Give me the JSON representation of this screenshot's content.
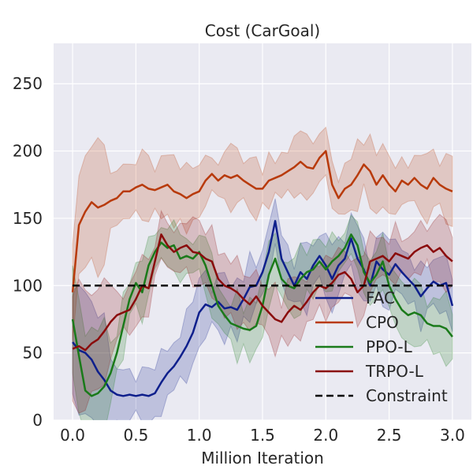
{
  "chart_data": {
    "type": "line",
    "title": "Cost (CarGoal)",
    "xlabel": "Million Iteration",
    "ylabel": "",
    "xlim": [
      -0.15,
      3.15
    ],
    "ylim": [
      0,
      280
    ],
    "xticks": [
      0.0,
      0.5,
      1.0,
      1.5,
      2.0,
      2.5,
      3.0
    ],
    "xtick_labels": [
      "0.0",
      "0.5",
      "1.0",
      "1.5",
      "2.0",
      "2.5",
      "3.0"
    ],
    "yticks": [
      0,
      50,
      100,
      150,
      200,
      250
    ],
    "ytick_labels": [
      "0",
      "50",
      "100",
      "150",
      "200",
      "250"
    ],
    "grid": true,
    "legend_position": "lower-right",
    "series": [
      {
        "name": "FAC",
        "color": "#0e1f8c",
        "shaded_band": true,
        "points": [
          [
            0.0,
            58
          ],
          [
            0.05,
            52
          ],
          [
            0.1,
            50
          ],
          [
            0.15,
            45
          ],
          [
            0.2,
            36
          ],
          [
            0.25,
            30
          ],
          [
            0.3,
            22
          ],
          [
            0.35,
            19
          ],
          [
            0.4,
            18
          ],
          [
            0.45,
            19
          ],
          [
            0.5,
            18
          ],
          [
            0.55,
            19
          ],
          [
            0.6,
            18
          ],
          [
            0.65,
            20
          ],
          [
            0.7,
            28
          ],
          [
            0.75,
            35
          ],
          [
            0.8,
            40
          ],
          [
            0.85,
            47
          ],
          [
            0.9,
            55
          ],
          [
            0.95,
            65
          ],
          [
            1.0,
            80
          ],
          [
            1.05,
            86
          ],
          [
            1.1,
            84
          ],
          [
            1.15,
            88
          ],
          [
            1.2,
            83
          ],
          [
            1.25,
            84
          ],
          [
            1.3,
            82
          ],
          [
            1.35,
            90
          ],
          [
            1.4,
            99
          ],
          [
            1.45,
            100
          ],
          [
            1.5,
            110
          ],
          [
            1.55,
            125
          ],
          [
            1.6,
            148
          ],
          [
            1.65,
            120
          ],
          [
            1.7,
            110
          ],
          [
            1.75,
            100
          ],
          [
            1.8,
            110
          ],
          [
            1.85,
            105
          ],
          [
            1.9,
            115
          ],
          [
            1.95,
            122
          ],
          [
            2.0,
            115
          ],
          [
            2.05,
            105
          ],
          [
            2.1,
            115
          ],
          [
            2.15,
            120
          ],
          [
            2.2,
            135
          ],
          [
            2.25,
            120
          ],
          [
            2.3,
            112
          ],
          [
            2.35,
            100
          ],
          [
            2.4,
            118
          ],
          [
            2.45,
            112
          ],
          [
            2.5,
            108
          ],
          [
            2.55,
            116
          ],
          [
            2.6,
            110
          ],
          [
            2.65,
            105
          ],
          [
            2.7,
            100
          ],
          [
            2.75,
            92
          ],
          [
            2.8,
            98
          ],
          [
            2.85,
            103
          ],
          [
            2.9,
            100
          ],
          [
            2.95,
            102
          ],
          [
            3.0,
            85
          ]
        ]
      },
      {
        "name": "CPO",
        "color": "#b83a0b",
        "shaded_band": true,
        "points": [
          [
            0.0,
            95
          ],
          [
            0.05,
            145
          ],
          [
            0.1,
            155
          ],
          [
            0.15,
            162
          ],
          [
            0.2,
            158
          ],
          [
            0.25,
            160
          ],
          [
            0.3,
            163
          ],
          [
            0.35,
            165
          ],
          [
            0.4,
            170
          ],
          [
            0.45,
            170
          ],
          [
            0.5,
            173
          ],
          [
            0.55,
            175
          ],
          [
            0.6,
            172
          ],
          [
            0.65,
            171
          ],
          [
            0.7,
            173
          ],
          [
            0.75,
            175
          ],
          [
            0.8,
            170
          ],
          [
            0.85,
            168
          ],
          [
            0.9,
            165
          ],
          [
            0.95,
            168
          ],
          [
            1.0,
            170
          ],
          [
            1.05,
            178
          ],
          [
            1.1,
            183
          ],
          [
            1.15,
            178
          ],
          [
            1.2,
            182
          ],
          [
            1.25,
            180
          ],
          [
            1.3,
            182
          ],
          [
            1.35,
            178
          ],
          [
            1.4,
            175
          ],
          [
            1.45,
            172
          ],
          [
            1.5,
            172
          ],
          [
            1.55,
            178
          ],
          [
            1.6,
            180
          ],
          [
            1.65,
            182
          ],
          [
            1.7,
            185
          ],
          [
            1.75,
            188
          ],
          [
            1.8,
            192
          ],
          [
            1.85,
            188
          ],
          [
            1.9,
            187
          ],
          [
            1.95,
            195
          ],
          [
            2.0,
            200
          ],
          [
            2.05,
            175
          ],
          [
            2.1,
            165
          ],
          [
            2.15,
            172
          ],
          [
            2.2,
            175
          ],
          [
            2.25,
            182
          ],
          [
            2.3,
            190
          ],
          [
            2.35,
            185
          ],
          [
            2.4,
            175
          ],
          [
            2.45,
            182
          ],
          [
            2.5,
            175
          ],
          [
            2.55,
            170
          ],
          [
            2.6,
            178
          ],
          [
            2.65,
            175
          ],
          [
            2.7,
            180
          ],
          [
            2.75,
            175
          ],
          [
            2.8,
            172
          ],
          [
            2.85,
            180
          ],
          [
            2.9,
            175
          ],
          [
            2.95,
            172
          ],
          [
            3.0,
            170
          ]
        ]
      },
      {
        "name": "PPO-L",
        "color": "#1a7a1a",
        "shaded_band": true,
        "points": [
          [
            0.0,
            75
          ],
          [
            0.05,
            48
          ],
          [
            0.1,
            22
          ],
          [
            0.15,
            18
          ],
          [
            0.2,
            20
          ],
          [
            0.25,
            25
          ],
          [
            0.3,
            35
          ],
          [
            0.35,
            50
          ],
          [
            0.4,
            70
          ],
          [
            0.45,
            90
          ],
          [
            0.5,
            102
          ],
          [
            0.55,
            95
          ],
          [
            0.6,
            115
          ],
          [
            0.65,
            125
          ],
          [
            0.7,
            132
          ],
          [
            0.75,
            128
          ],
          [
            0.8,
            130
          ],
          [
            0.85,
            120
          ],
          [
            0.9,
            122
          ],
          [
            0.95,
            120
          ],
          [
            1.0,
            125
          ],
          [
            1.05,
            115
          ],
          [
            1.1,
            100
          ],
          [
            1.15,
            85
          ],
          [
            1.2,
            78
          ],
          [
            1.25,
            72
          ],
          [
            1.3,
            70
          ],
          [
            1.35,
            68
          ],
          [
            1.4,
            67
          ],
          [
            1.45,
            70
          ],
          [
            1.5,
            85
          ],
          [
            1.55,
            108
          ],
          [
            1.6,
            120
          ],
          [
            1.65,
            105
          ],
          [
            1.7,
            100
          ],
          [
            1.75,
            98
          ],
          [
            1.8,
            105
          ],
          [
            1.85,
            110
          ],
          [
            1.9,
            112
          ],
          [
            1.95,
            118
          ],
          [
            2.0,
            112
          ],
          [
            2.05,
            118
          ],
          [
            2.1,
            122
          ],
          [
            2.15,
            128
          ],
          [
            2.2,
            138
          ],
          [
            2.25,
            130
          ],
          [
            2.3,
            110
          ],
          [
            2.35,
            102
          ],
          [
            2.4,
            108
          ],
          [
            2.45,
            118
          ],
          [
            2.5,
            100
          ],
          [
            2.55,
            90
          ],
          [
            2.6,
            82
          ],
          [
            2.65,
            78
          ],
          [
            2.7,
            80
          ],
          [
            2.75,
            78
          ],
          [
            2.8,
            72
          ],
          [
            2.85,
            70
          ],
          [
            2.9,
            70
          ],
          [
            2.95,
            68
          ],
          [
            3.0,
            62
          ]
        ]
      },
      {
        "name": "TRPO-L",
        "color": "#8a0c0c",
        "shaded_band": true,
        "points": [
          [
            0.0,
            53
          ],
          [
            0.05,
            55
          ],
          [
            0.1,
            52
          ],
          [
            0.15,
            57
          ],
          [
            0.2,
            60
          ],
          [
            0.25,
            66
          ],
          [
            0.3,
            73
          ],
          [
            0.35,
            78
          ],
          [
            0.4,
            80
          ],
          [
            0.45,
            82
          ],
          [
            0.5,
            90
          ],
          [
            0.55,
            100
          ],
          [
            0.6,
            98
          ],
          [
            0.65,
            118
          ],
          [
            0.7,
            138
          ],
          [
            0.75,
            130
          ],
          [
            0.8,
            125
          ],
          [
            0.85,
            128
          ],
          [
            0.9,
            130
          ],
          [
            0.95,
            125
          ],
          [
            1.0,
            124
          ],
          [
            1.05,
            120
          ],
          [
            1.1,
            118
          ],
          [
            1.15,
            105
          ],
          [
            1.2,
            100
          ],
          [
            1.25,
            98
          ],
          [
            1.3,
            95
          ],
          [
            1.35,
            90
          ],
          [
            1.4,
            86
          ],
          [
            1.45,
            92
          ],
          [
            1.5,
            85
          ],
          [
            1.55,
            80
          ],
          [
            1.6,
            75
          ],
          [
            1.65,
            73
          ],
          [
            1.7,
            80
          ],
          [
            1.75,
            85
          ],
          [
            1.8,
            82
          ],
          [
            1.85,
            88
          ],
          [
            1.9,
            95
          ],
          [
            1.95,
            100
          ],
          [
            2.0,
            98
          ],
          [
            2.05,
            102
          ],
          [
            2.1,
            108
          ],
          [
            2.15,
            110
          ],
          [
            2.2,
            105
          ],
          [
            2.25,
            95
          ],
          [
            2.3,
            100
          ],
          [
            2.35,
            118
          ],
          [
            2.4,
            120
          ],
          [
            2.45,
            122
          ],
          [
            2.5,
            118
          ],
          [
            2.55,
            124
          ],
          [
            2.6,
            122
          ],
          [
            2.65,
            120
          ],
          [
            2.7,
            125
          ],
          [
            2.75,
            128
          ],
          [
            2.8,
            130
          ],
          [
            2.85,
            125
          ],
          [
            2.9,
            128
          ],
          [
            2.95,
            122
          ],
          [
            3.0,
            118
          ]
        ]
      },
      {
        "name": "Constraint",
        "color": "#000000",
        "dashed": true,
        "points": [
          [
            0.0,
            100
          ],
          [
            3.0,
            100
          ]
        ]
      }
    ]
  }
}
